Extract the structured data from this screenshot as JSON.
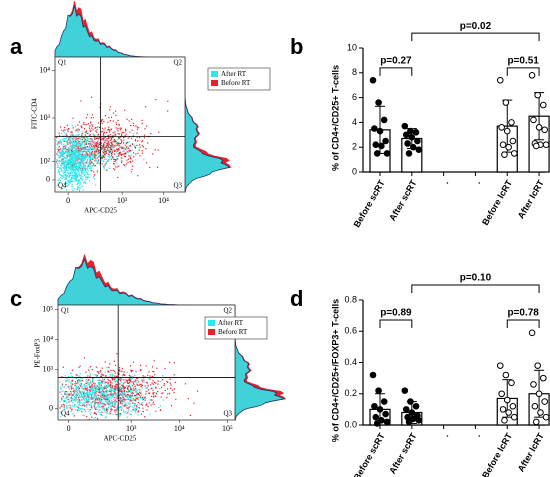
{
  "chart_data": [
    {
      "type": "flow",
      "panel": "a",
      "xlabel": "APC-CD25",
      "ylabel": "FITC-CD4",
      "scale": "biexponential",
      "quadrants": [
        "Q1",
        "Q2",
        "Q3",
        "Q4"
      ],
      "series": [
        {
          "name": "After RT",
          "color": "#2fe4ec"
        },
        {
          "name": "Before RT",
          "color": "#e8202a"
        }
      ],
      "xlim": [
        -80,
        33000
      ],
      "xticks": [
        0,
        {
          "value": 1000,
          "label": "10³"
        },
        {
          "value": 10000,
          "label": "10⁴"
        }
      ],
      "ylim": [
        -62,
        19200
      ],
      "yticks": [
        0,
        {
          "value": 100,
          "label": "10²"
        },
        {
          "value": 1000,
          "label": "10³"
        },
        {
          "value": 10000,
          "label": "10⁴"
        }
      ]
    },
    {
      "type": "dotbar",
      "panel": "b",
      "ylabel": "% of CD4+/CD25+ T-cells",
      "categories": [
        "Before scRT",
        "After scRT",
        ".",
        ".",
        "Before lcRT",
        "After lcRT"
      ],
      "values": [
        3.4,
        2.7,
        null,
        null,
        3.7,
        4.5
      ],
      "errors": [
        1.9,
        0.8,
        null,
        null,
        2.1,
        1.9
      ],
      "filled": [
        true,
        true,
        false,
        false,
        false,
        false
      ],
      "points": [
        [
          7.4,
          5.6,
          4.2,
          3.5,
          3.3,
          2.5,
          2.2,
          2.1,
          1.5,
          1.5
        ],
        [
          3.7,
          3.3,
          3.2,
          3.0,
          2.8,
          2.5,
          2.3,
          2.0,
          1.8,
          1.5
        ],
        [],
        [],
        [
          7.4,
          5.6,
          4.0,
          3.6,
          3.3,
          2.5,
          2.2,
          2.0,
          1.5,
          1.4
        ],
        [
          7.8,
          6.2,
          5.4,
          4.2,
          3.6,
          3.4,
          2.3,
          2.2,
          2.2,
          2.1
        ]
      ],
      "annotations": [
        {
          "text": "p=0.27",
          "from": 0,
          "to": 1
        },
        {
          "text": "p=0.51",
          "from": 4,
          "to": 5
        },
        {
          "text": "p=0.02",
          "from": 1,
          "to": 5
        }
      ],
      "ylim": [
        0,
        10
      ],
      "yticks": [
        0,
        2,
        4,
        6,
        8,
        10
      ]
    },
    {
      "type": "flow",
      "panel": "c",
      "xlabel": "APC-CD25",
      "ylabel": "PE-FoxP3",
      "scale": "biexponential",
      "quadrants": [
        "Q1",
        "Q2",
        "Q3",
        "Q4"
      ],
      "series": [
        {
          "name": "After RT",
          "color": "#2fe4ec"
        },
        {
          "name": "Before RT",
          "color": "#e8202a"
        }
      ],
      "xlim": [
        -53,
        144000
      ],
      "xticks": [
        0,
        {
          "value": 1000,
          "label": "10³"
        },
        {
          "value": 10000,
          "label": "10⁴"
        },
        {
          "value": 100000,
          "label": "10⁵"
        }
      ],
      "ylim": [
        -100,
        143000
      ],
      "yticks": [
        0,
        {
          "value": 1000,
          "label": "10³"
        },
        {
          "value": 10000,
          "label": "10⁴"
        },
        {
          "value": 100000,
          "label": "10⁵"
        }
      ]
    },
    {
      "type": "dotbar",
      "panel": "d",
      "ylabel": "% of CD4+/CD25+/FOXP3+ T-cells",
      "categories": [
        "Before scRT",
        "After scRT",
        ".",
        ".",
        "Before lcRT",
        "After lcRT"
      ],
      "values": [
        0.1,
        0.08,
        null,
        null,
        0.17,
        0.2
      ],
      "errors": [
        0.1,
        0.07,
        null,
        null,
        0.12,
        0.15
      ],
      "filled": [
        true,
        true,
        false,
        false,
        false,
        false
      ],
      "points": [
        [
          0.32,
          0.22,
          0.15,
          0.12,
          0.1,
          0.07,
          0.05,
          0.03,
          0.02,
          0.01
        ],
        [
          0.22,
          0.15,
          0.12,
          0.1,
          0.08,
          0.06,
          0.05,
          0.04,
          0.03,
          0.02
        ],
        [],
        [],
        [
          0.38,
          0.32,
          0.27,
          0.2,
          0.16,
          0.12,
          0.1,
          0.08,
          0.05,
          0.03
        ],
        [
          0.59,
          0.38,
          0.3,
          0.26,
          0.2,
          0.15,
          0.12,
          0.08,
          0.05,
          0.02
        ]
      ],
      "annotations": [
        {
          "text": "p=0.89",
          "from": 0,
          "to": 1
        },
        {
          "text": "p=0.78",
          "from": 4,
          "to": 5
        },
        {
          "text": "p=0.10",
          "from": 1,
          "to": 5
        }
      ],
      "ylim": [
        0,
        0.8
      ],
      "yticks": [
        {
          "value": 0,
          "label": "0.0"
        },
        0.2,
        0.4,
        0.6,
        0.8
      ]
    }
  ]
}
